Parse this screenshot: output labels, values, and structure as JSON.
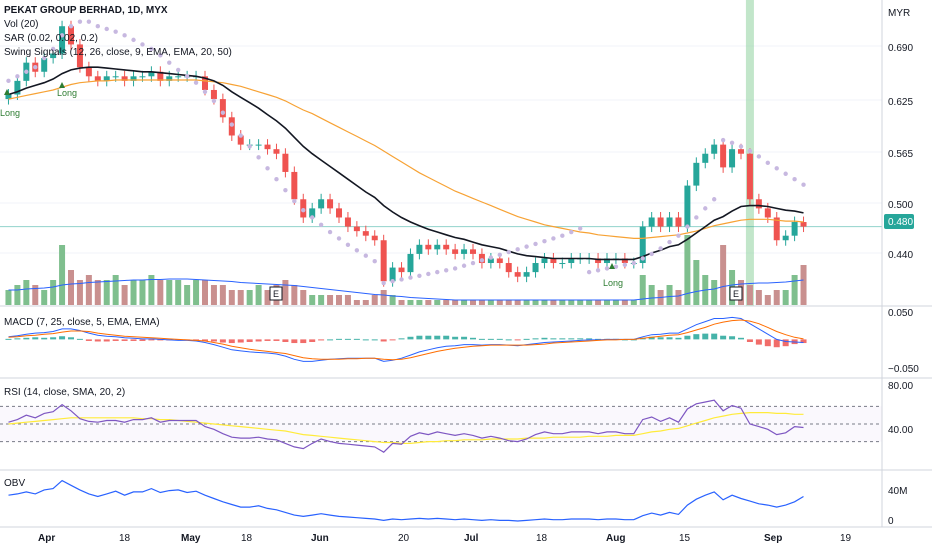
{
  "header": {
    "symbol_line": "PEKAT GROUP BERHAD, 1D, MYX",
    "vol_label": "Vol (20)",
    "sar_label": "SAR (0.02, 0.02, 0.2)",
    "swing_label": "Swing Signals (12, 26, close, 9, EMA, EMA, 20, 50)"
  },
  "currency_label": "MYR",
  "last_price_tag": "0.480",
  "panes": {
    "macd_label": "MACD (7, 25, close, 5, EMA, EMA)",
    "rsi_label": "RSI (14, close, SMA, 20, 2)",
    "obv_label": "OBV"
  },
  "axis": {
    "main_ticks": [
      "0.690",
      "0.625",
      "0.565",
      "0.500",
      "0.440"
    ],
    "macd_ticks": [
      "0.050",
      "−0.050"
    ],
    "rsi_ticks": [
      "80.00",
      "40.00"
    ],
    "obv_ticks": [
      "40M",
      "0"
    ],
    "time_ticks": [
      "Apr",
      "18",
      "May",
      "18",
      "Jun",
      "20",
      "Jul",
      "18",
      "Aug",
      "15",
      "Sep",
      "19"
    ]
  },
  "annotations": {
    "long_labels": [
      "Long",
      "Long",
      "Long"
    ],
    "earnings_labels": [
      "E",
      "E"
    ]
  },
  "colors": {
    "up": "#26a69a",
    "down": "#ef5350",
    "up_vol": "#7fbf8e",
    "down_vol": "#c9908f",
    "sar": "#c7b8e0",
    "ema20": "#131722",
    "ema50": "#f7a234",
    "vol_ma": "#2962ff",
    "macd": "#2962ff",
    "macd_signal": "#ff6d00",
    "rsi": "#7e57c2",
    "rsi_ma": "#ffeb3b",
    "obv": "#2962ff",
    "highlight": "#8fd19e",
    "grid": "#f0f3fa"
  },
  "chart_data": [
    {
      "type": "candlestick",
      "title": "PEKAT GROUP BERHAD, 1D, MYX",
      "ylabel": "MYR",
      "ylim": [
        0.395,
        0.72
      ],
      "x_ticks": [
        "Apr",
        "18",
        "May",
        "18",
        "Jun",
        "20",
        "Jul",
        "18",
        "Aug",
        "15",
        "Sep",
        "19"
      ],
      "close": [
        0.625,
        0.64,
        0.66,
        0.65,
        0.665,
        0.67,
        0.7,
        0.68,
        0.655,
        0.645,
        0.64,
        0.645,
        0.645,
        0.64,
        0.645,
        0.645,
        0.65,
        0.64,
        0.645,
        0.645,
        0.645,
        0.645,
        0.63,
        0.62,
        0.6,
        0.58,
        0.57,
        0.57,
        0.57,
        0.565,
        0.56,
        0.54,
        0.51,
        0.49,
        0.5,
        0.51,
        0.5,
        0.49,
        0.48,
        0.475,
        0.47,
        0.465,
        0.42,
        0.435,
        0.43,
        0.45,
        0.46,
        0.455,
        0.46,
        0.455,
        0.45,
        0.455,
        0.45,
        0.44,
        0.445,
        0.44,
        0.43,
        0.425,
        0.43,
        0.44,
        0.445,
        0.44,
        0.44,
        0.445,
        0.445,
        0.445,
        0.44,
        0.445,
        0.445,
        0.44,
        0.44,
        0.48,
        0.49,
        0.48,
        0.49,
        0.48,
        0.525,
        0.55,
        0.56,
        0.57,
        0.545,
        0.565,
        0.56,
        0.51,
        0.5,
        0.49,
        0.465,
        0.47,
        0.485,
        0.48
      ],
      "sar": [
        0.64,
        0.645,
        0.65,
        0.655,
        0.665,
        0.675,
        0.69,
        0.7,
        0.705,
        0.705,
        0.7,
        0.697,
        0.694,
        0.69,
        0.685,
        0.68,
        0.675,
        0.668,
        0.66,
        0.652,
        0.645,
        0.638,
        0.628,
        0.618,
        0.605,
        0.592,
        0.58,
        0.568,
        0.556,
        0.544,
        0.532,
        0.52,
        0.508,
        0.498,
        0.49,
        0.482,
        0.474,
        0.467,
        0.46,
        0.454,
        0.448,
        0.442,
        0.418,
        0.42,
        0.422,
        0.424,
        0.426,
        0.428,
        0.43,
        0.432,
        0.434,
        0.437,
        0.44,
        0.443,
        0.446,
        0.449,
        0.452,
        0.455,
        0.458,
        0.461,
        0.464,
        0.467,
        0.47,
        0.474,
        0.478,
        0.43,
        0.432,
        0.434,
        0.436,
        0.438,
        0.44,
        0.445,
        0.45,
        0.456,
        0.463,
        0.47,
        0.48,
        0.49,
        0.5,
        0.51,
        0.575,
        0.572,
        0.568,
        0.563,
        0.557,
        0.55,
        0.544,
        0.538,
        0.532,
        0.526
      ],
      "ema20": [
        0.625,
        0.628,
        0.632,
        0.635,
        0.638,
        0.642,
        0.648,
        0.652,
        0.654,
        0.655,
        0.655,
        0.654,
        0.653,
        0.652,
        0.651,
        0.65,
        0.65,
        0.649,
        0.648,
        0.647,
        0.646,
        0.645,
        0.643,
        0.64,
        0.635,
        0.628,
        0.622,
        0.616,
        0.61,
        0.603,
        0.596,
        0.588,
        0.578,
        0.568,
        0.56,
        0.553,
        0.546,
        0.539,
        0.532,
        0.525,
        0.518,
        0.512,
        0.503,
        0.496,
        0.49,
        0.485,
        0.481,
        0.477,
        0.474,
        0.471,
        0.468,
        0.466,
        0.463,
        0.46,
        0.458,
        0.456,
        0.453,
        0.45,
        0.448,
        0.447,
        0.446,
        0.445,
        0.445,
        0.445,
        0.445,
        0.445,
        0.444,
        0.444,
        0.444,
        0.444,
        0.444,
        0.447,
        0.451,
        0.454,
        0.458,
        0.46,
        0.466,
        0.473,
        0.48,
        0.487,
        0.491,
        0.497,
        0.502,
        0.503,
        0.503,
        0.502,
        0.5,
        0.498,
        0.497,
        0.495
      ],
      "ema50": [
        0.62,
        0.622,
        0.624,
        0.626,
        0.628,
        0.63,
        0.633,
        0.636,
        0.638,
        0.639,
        0.64,
        0.64,
        0.641,
        0.641,
        0.641,
        0.641,
        0.641,
        0.641,
        0.641,
        0.641,
        0.641,
        0.641,
        0.64,
        0.639,
        0.638,
        0.636,
        0.634,
        0.631,
        0.628,
        0.625,
        0.622,
        0.618,
        0.613,
        0.608,
        0.604,
        0.599,
        0.594,
        0.589,
        0.584,
        0.579,
        0.574,
        0.569,
        0.563,
        0.557,
        0.551,
        0.545,
        0.539,
        0.534,
        0.529,
        0.524,
        0.519,
        0.515,
        0.511,
        0.507,
        0.503,
        0.499,
        0.495,
        0.491,
        0.488,
        0.485,
        0.482,
        0.48,
        0.478,
        0.476,
        0.474,
        0.473,
        0.471,
        0.47,
        0.469,
        0.468,
        0.467,
        0.467,
        0.468,
        0.469,
        0.47,
        0.471,
        0.473,
        0.475,
        0.478,
        0.481,
        0.483,
        0.485,
        0.487,
        0.488,
        0.488,
        0.488,
        0.487,
        0.486,
        0.486,
        0.485
      ]
    },
    {
      "type": "bar",
      "title": "Vol (20)",
      "values": [
        3,
        4,
        5,
        4,
        3,
        5,
        12,
        7,
        5,
        6,
        5,
        5,
        6,
        4,
        5,
        5,
        6,
        5,
        5,
        5,
        4,
        5,
        5,
        4,
        4,
        3,
        3,
        3,
        4,
        3,
        4,
        5,
        4,
        3,
        2,
        2,
        2,
        2,
        2,
        1,
        1,
        2,
        3,
        2,
        1,
        1,
        1,
        1,
        1,
        1,
        1,
        1,
        1,
        1,
        1,
        1,
        1,
        1,
        1,
        1,
        1,
        1,
        1,
        1,
        1,
        1,
        1,
        1,
        1,
        1,
        1,
        6,
        4,
        3,
        4,
        3,
        14,
        9,
        6,
        5,
        12,
        7,
        5,
        4,
        3,
        2,
        3,
        3,
        6,
        8
      ],
      "ma": [
        3,
        3,
        3.2,
        3.3,
        3.4,
        3.6,
        4,
        4.2,
        4.3,
        4.5,
        4.6,
        4.7,
        4.8,
        4.9,
        5,
        5,
        5.1,
        5.1,
        5.2,
        5.2,
        5.2,
        5.1,
        5,
        4.9,
        4.8,
        4.7,
        4.5,
        4.4,
        4.3,
        4.2,
        4.1,
        4,
        3.9,
        3.7,
        3.5,
        3.3,
        3.1,
        2.9,
        2.7,
        2.5,
        2.3,
        2.1,
        2,
        1.8,
        1.7,
        1.5,
        1.4,
        1.3,
        1.2,
        1.1,
        1,
        1,
        1,
        1,
        1,
        1,
        1,
        1,
        1,
        1,
        1,
        1,
        1,
        1,
        1,
        1,
        1,
        1,
        1,
        1,
        1,
        1.2,
        1.4,
        1.5,
        1.7,
        1.8,
        2.3,
        2.7,
        3,
        3.2,
        3.7,
        4,
        4.2,
        4.3,
        4.4,
        4.4,
        4.5,
        4.6,
        4.8,
        5
      ]
    },
    {
      "type": "line",
      "title": "MACD (7, 25, close, 5, EMA, EMA)",
      "ylim": [
        -0.07,
        0.06
      ],
      "macd": [
        0.005,
        0.007,
        0.01,
        0.012,
        0.013,
        0.015,
        0.02,
        0.02,
        0.017,
        0.012,
        0.008,
        0.006,
        0.005,
        0.003,
        0.002,
        0.001,
        0.001,
        0.0,
        -0.001,
        -0.002,
        -0.002,
        -0.003,
        -0.006,
        -0.01,
        -0.015,
        -0.02,
        -0.022,
        -0.024,
        -0.025,
        -0.026,
        -0.028,
        -0.032,
        -0.038,
        -0.042,
        -0.042,
        -0.04,
        -0.038,
        -0.037,
        -0.036,
        -0.036,
        -0.036,
        -0.036,
        -0.042,
        -0.04,
        -0.036,
        -0.03,
        -0.024,
        -0.02,
        -0.016,
        -0.013,
        -0.012,
        -0.01,
        -0.01,
        -0.011,
        -0.01,
        -0.01,
        -0.011,
        -0.012,
        -0.01,
        -0.008,
        -0.006,
        -0.005,
        -0.004,
        -0.003,
        -0.002,
        -0.001,
        -0.001,
        0.0,
        0.0,
        0.0,
        0.0,
        0.005,
        0.009,
        0.01,
        0.012,
        0.012,
        0.02,
        0.028,
        0.034,
        0.04,
        0.04,
        0.042,
        0.04,
        0.03,
        0.02,
        0.01,
        0.0,
        -0.004,
        -0.005,
        -0.006
      ],
      "signal": [
        0.004,
        0.005,
        0.007,
        0.008,
        0.01,
        0.011,
        0.014,
        0.016,
        0.016,
        0.015,
        0.012,
        0.01,
        0.008,
        0.006,
        0.005,
        0.004,
        0.003,
        0.002,
        0.001,
        0.0,
        -0.001,
        -0.002,
        -0.003,
        -0.006,
        -0.009,
        -0.013,
        -0.016,
        -0.019,
        -0.021,
        -0.023,
        -0.025,
        -0.027,
        -0.031,
        -0.035,
        -0.037,
        -0.038,
        -0.038,
        -0.038,
        -0.037,
        -0.037,
        -0.036,
        -0.036,
        -0.038,
        -0.039,
        -0.038,
        -0.035,
        -0.031,
        -0.027,
        -0.023,
        -0.02,
        -0.017,
        -0.015,
        -0.013,
        -0.012,
        -0.011,
        -0.011,
        -0.011,
        -0.011,
        -0.011,
        -0.01,
        -0.009,
        -0.007,
        -0.006,
        -0.005,
        -0.004,
        -0.003,
        -0.002,
        -0.001,
        -0.001,
        0.0,
        0.0,
        0.002,
        0.004,
        0.006,
        0.008,
        0.009,
        0.013,
        0.018,
        0.023,
        0.029,
        0.033,
        0.036,
        0.037,
        0.035,
        0.03,
        0.023,
        0.015,
        0.009,
        0.004,
        0.001
      ],
      "histogram": [
        0.001,
        0.002,
        0.003,
        0.004,
        0.003,
        0.004,
        0.006,
        0.004,
        0.001,
        -0.003,
        -0.004,
        -0.004,
        -0.003,
        -0.003,
        -0.003,
        -0.003,
        -0.002,
        -0.002,
        -0.002,
        -0.002,
        -0.001,
        -0.001,
        -0.003,
        -0.004,
        -0.006,
        -0.007,
        -0.006,
        -0.005,
        -0.004,
        -0.003,
        -0.003,
        -0.005,
        -0.007,
        -0.007,
        -0.005,
        -0.002,
        0.0,
        0.001,
        0.001,
        0.001,
        0.0,
        0.0,
        -0.004,
        -0.001,
        0.002,
        0.005,
        0.007,
        0.007,
        0.007,
        0.007,
        0.005,
        0.005,
        0.003,
        0.001,
        0.001,
        0.001,
        0.0,
        -0.001,
        0.001,
        0.002,
        0.003,
        0.002,
        0.002,
        0.002,
        0.002,
        0.002,
        0.001,
        0.001,
        0.001,
        0.0,
        0.0,
        0.003,
        0.005,
        0.004,
        0.004,
        0.003,
        0.007,
        0.01,
        0.011,
        0.011,
        0.007,
        0.006,
        0.003,
        -0.005,
        -0.01,
        -0.013,
        -0.015,
        -0.013,
        -0.009,
        -0.007
      ]
    },
    {
      "type": "line",
      "title": "RSI (14, close, SMA, 20, 2)",
      "ylim": [
        0,
        100
      ],
      "bands": [
        70,
        50,
        30
      ],
      "rsi": [
        52,
        55,
        60,
        57,
        62,
        64,
        72,
        65,
        56,
        53,
        52,
        54,
        54,
        52,
        55,
        55,
        57,
        52,
        54,
        54,
        54,
        54,
        47,
        44,
        39,
        35,
        34,
        34,
        35,
        33,
        32,
        28,
        24,
        22,
        28,
        33,
        30,
        28,
        27,
        26,
        25,
        24,
        18,
        28,
        27,
        36,
        40,
        38,
        41,
        39,
        37,
        39,
        37,
        34,
        36,
        34,
        31,
        30,
        33,
        38,
        41,
        39,
        39,
        41,
        41,
        41,
        39,
        41,
        41,
        39,
        39,
        55,
        58,
        53,
        57,
        52,
        67,
        73,
        75,
        77,
        65,
        71,
        68,
        50,
        47,
        44,
        38,
        40,
        47,
        46
      ],
      "ma": [
        50,
        51,
        52,
        53,
        54,
        55,
        56,
        57,
        57,
        57,
        57,
        57,
        57,
        57,
        57,
        56,
        56,
        55,
        55,
        54,
        53,
        52,
        51,
        50,
        49,
        48,
        47,
        46,
        45,
        44,
        43,
        42,
        40,
        38,
        37,
        36,
        35,
        34,
        33,
        32,
        31,
        30,
        29,
        29,
        28,
        28,
        29,
        30,
        30,
        31,
        31,
        32,
        32,
        32,
        33,
        33,
        33,
        33,
        34,
        34,
        34,
        35,
        35,
        35,
        35,
        36,
        36,
        36,
        37,
        37,
        37,
        39,
        41,
        42,
        44,
        45,
        48,
        51,
        54,
        57,
        59,
        61,
        62,
        63,
        63,
        63,
        62,
        62,
        61,
        61
      ]
    },
    {
      "type": "line",
      "title": "OBV",
      "ylim": [
        -5,
        75
      ],
      "obv": [
        40,
        42,
        45,
        42,
        48,
        50,
        62,
        55,
        48,
        42,
        38,
        42,
        46,
        40,
        45,
        45,
        50,
        44,
        47,
        48,
        44,
        46,
        40,
        35,
        30,
        26,
        22,
        22,
        24,
        20,
        18,
        14,
        10,
        8,
        10,
        12,
        10,
        8,
        7,
        6,
        5,
        4,
        2,
        4,
        3,
        4,
        5,
        4,
        5,
        4,
        3,
        4,
        3,
        2,
        3,
        2,
        2,
        1,
        2,
        3,
        4,
        3,
        3,
        4,
        4,
        4,
        3,
        4,
        4,
        3,
        3,
        9,
        13,
        10,
        14,
        11,
        25,
        34,
        40,
        45,
        33,
        40,
        35,
        31,
        27,
        25,
        22,
        25,
        30,
        38
      ]
    }
  ]
}
